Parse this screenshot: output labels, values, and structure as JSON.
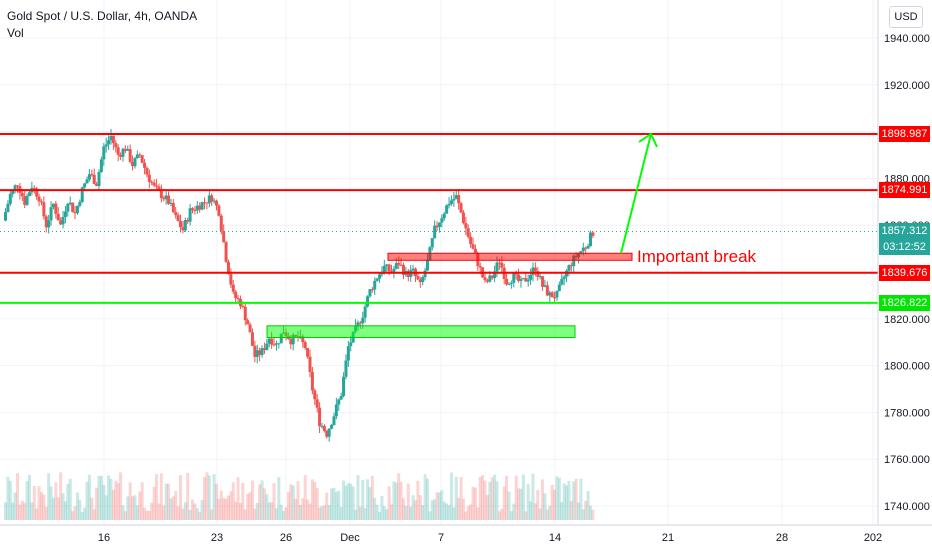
{
  "header": {
    "title": "Gold Spot / U.S. Dollar, 4h, OANDA",
    "volume_label": "Vol",
    "currency_button": "USD"
  },
  "colors": {
    "up": "#26a69a",
    "down": "#ef5350",
    "level_red": "#ff0000",
    "level_green": "#00ff00",
    "annotation": "#ff0000",
    "arrow": "#00ff00",
    "current_price": "#26a69a"
  },
  "price_labels": [
    {
      "text": "1898.987",
      "color": "#ff0000"
    },
    {
      "text": "1874.991",
      "color": "#ff0000"
    },
    {
      "text": "1857.312",
      "color": "#26a69a"
    },
    {
      "text": "03:12:52",
      "color": "#26a69a"
    },
    {
      "text": "1839.676",
      "color": "#ff0000"
    },
    {
      "text": "1826.822",
      "color": "#00e600"
    }
  ],
  "annotation_text": "Important break",
  "chart_data": {
    "type": "candlestick",
    "symbol": "Gold Spot / U.S. Dollar",
    "interval": "4h",
    "exchange": "OANDA",
    "y_ticks": [
      1740,
      1760,
      1780,
      1800,
      1820,
      1840,
      1860,
      1880,
      1900,
      1920,
      1940
    ],
    "y_tick_labels": [
      "1740.000",
      "1760.000",
      "1780.000",
      "1800.000",
      "1820.000",
      "1840.000",
      "1860.000",
      "1880.000",
      "1900.000",
      "1920.000",
      "1940.000"
    ],
    "ylim": [
      1734,
      1952
    ],
    "x_tick_labels": [
      "16",
      "23",
      "26",
      "Dec",
      "7",
      "14",
      "21",
      "28",
      "202"
    ],
    "horizontal_levels": [
      {
        "value": 1898.987,
        "color": "#ff0000"
      },
      {
        "value": 1874.991,
        "color": "#ff0000"
      },
      {
        "value": 1839.676,
        "color": "#ff0000"
      },
      {
        "value": 1826.822,
        "color": "#00ff00"
      }
    ],
    "zones": [
      {
        "from": "Dec 2",
        "to": "Dec 17",
        "low": 1845,
        "high": 1848,
        "color": "red"
      },
      {
        "from": "Nov 25",
        "to": "Dec 15",
        "low": 1812,
        "high": 1817,
        "color": "green"
      }
    ],
    "current_price": 1857.312,
    "countdown": "03:12:52",
    "annotation": "Important break",
    "projection": {
      "from_price": 1848,
      "to_price": 1899
    },
    "price_path": [
      1862,
      1873,
      1878,
      1870,
      1877,
      1872,
      1860,
      1869,
      1860,
      1871,
      1865,
      1875,
      1882,
      1878,
      1893,
      1898,
      1890,
      1893,
      1886,
      1890,
      1882,
      1876,
      1873,
      1870,
      1863,
      1858,
      1866,
      1868,
      1870,
      1872,
      1866,
      1846,
      1830,
      1827,
      1818,
      1804,
      1806,
      1812,
      1809,
      1815,
      1811,
      1812,
      1808,
      1790,
      1776,
      1771,
      1779,
      1788,
      1808,
      1815,
      1822,
      1832,
      1838,
      1842,
      1840,
      1844,
      1839,
      1840,
      1834,
      1844,
      1858,
      1864,
      1870,
      1872,
      1862,
      1852,
      1844,
      1835,
      1838,
      1845,
      1836,
      1838,
      1835,
      1838,
      1842,
      1834,
      1830,
      1830,
      1838,
      1844,
      1848,
      1851,
      1857
    ]
  }
}
